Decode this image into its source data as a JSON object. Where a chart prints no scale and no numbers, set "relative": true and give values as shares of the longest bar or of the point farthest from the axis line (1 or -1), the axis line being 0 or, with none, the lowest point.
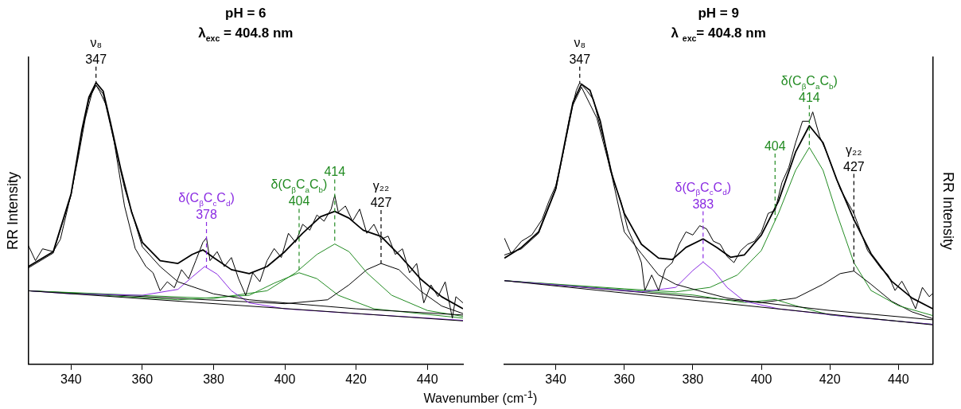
{
  "chart_data": [
    {
      "type": "line",
      "title": "pH = 6",
      "subtitle": "λ$_{exc}$ = 404.8 nm",
      "xlabel": "Wavenumber (cm$^{-1}$)",
      "ylabel": "RR Intensity",
      "relative": true,
      "xlim": [
        328,
        450
      ],
      "xticks": [
        340,
        360,
        380,
        400,
        420,
        440
      ],
      "legend": false,
      "marker": "none",
      "line_style": "solid",
      "series": [
        {
          "color": "#000000",
          "x": [
            328,
            330,
            332,
            335,
            337,
            340,
            342,
            344,
            346,
            347,
            348,
            350,
            352,
            355,
            358,
            361,
            363,
            365,
            367,
            369,
            371,
            373,
            375,
            377,
            378,
            379,
            381,
            383,
            385,
            387,
            389,
            391,
            393,
            395,
            397,
            399,
            401,
            403,
            405,
            407,
            409,
            411,
            413,
            414,
            415,
            417,
            419,
            421,
            423,
            425,
            427,
            429,
            431,
            433,
            435,
            437,
            439,
            441,
            443,
            445,
            447,
            448,
            450
          ],
          "values": [
            0.422,
            0.368,
            0.41,
            0.4,
            0.444,
            0.605,
            0.734,
            0.873,
            0.97,
            0.991,
            0.97,
            0.916,
            0.798,
            0.562,
            0.411,
            0.347,
            0.325,
            0.261,
            0.293,
            0.272,
            0.336,
            0.304,
            0.368,
            0.433,
            0.449,
            0.368,
            0.4,
            0.347,
            0.379,
            0.304,
            0.245,
            0.325,
            0.293,
            0.368,
            0.411,
            0.379,
            0.465,
            0.433,
            0.497,
            0.476,
            0.53,
            0.508,
            0.551,
            0.6,
            0.54,
            0.562,
            0.508,
            0.551,
            0.465,
            0.497,
            0.444,
            0.455,
            0.39,
            0.41,
            0.325,
            0.358,
            0.218,
            0.282,
            0.24,
            0.293,
            0.164,
            0.24,
            0.218
          ]
        },
        {
          "color": "#000000",
          "x": [
            328,
            335,
            340,
            343,
            345,
            347,
            349,
            351,
            354,
            357,
            360,
            365,
            370,
            374,
            377,
            380,
            385,
            390,
            395,
            400,
            405,
            410,
            414,
            418,
            422,
            427,
            432,
            438,
            444,
            450
          ],
          "values": [
            0.347,
            0.4,
            0.605,
            0.83,
            0.948,
            1.0,
            0.97,
            0.862,
            0.69,
            0.54,
            0.433,
            0.368,
            0.358,
            0.39,
            0.406,
            0.379,
            0.336,
            0.322,
            0.347,
            0.4,
            0.465,
            0.524,
            0.543,
            0.519,
            0.476,
            0.454,
            0.39,
            0.304,
            0.24,
            0.197
          ]
        },
        {
          "color": "#000000",
          "x": [
            328,
            450
          ],
          "values": [
            0.261,
            0.154
          ]
        },
        {
          "color": "#000000",
          "x": [
            328,
            335,
            340,
            343,
            345,
            347,
            349,
            351,
            355,
            360,
            365,
            370,
            380,
            390,
            400,
            420,
            450
          ],
          "values": [
            0.342,
            0.395,
            0.6,
            0.82,
            0.94,
            0.991,
            0.96,
            0.85,
            0.626,
            0.417,
            0.347,
            0.293,
            0.25,
            0.229,
            0.218,
            0.197,
            0.175
          ]
        },
        {
          "color": "#8a2be2",
          "x": [
            328,
            340,
            360,
            370,
            374,
            377.5,
            381,
            385,
            390,
            400,
            420,
            450
          ],
          "values": [
            0.261,
            0.25,
            0.245,
            0.266,
            0.31,
            0.347,
            0.32,
            0.261,
            0.218,
            0.197,
            0.18,
            0.156
          ]
        },
        {
          "color": "#228b22",
          "x": [
            328,
            370,
            390,
            397,
            404,
            409,
            415,
            425,
            450
          ],
          "values": [
            0.261,
            0.229,
            0.245,
            0.288,
            0.325,
            0.304,
            0.245,
            0.197,
            0.164
          ]
        },
        {
          "color": "#228b22",
          "x": [
            328,
            380,
            395,
            403,
            409,
            414,
            418,
            423,
            430,
            440,
            450
          ],
          "values": [
            0.261,
            0.234,
            0.261,
            0.325,
            0.39,
            0.427,
            0.4,
            0.325,
            0.245,
            0.191,
            0.17
          ]
        },
        {
          "color": "#000000",
          "x": [
            328,
            400,
            412,
            418,
            423,
            427,
            432,
            438,
            444,
            450
          ],
          "values": [
            0.261,
            0.215,
            0.229,
            0.282,
            0.336,
            0.358,
            0.336,
            0.261,
            0.207,
            0.18
          ]
        }
      ],
      "ref_lines": [
        {
          "axis": "x",
          "value": 347,
          "label": "ν₈\n347",
          "color": "#000000",
          "line_style": "dashed"
        },
        {
          "axis": "x",
          "value": 378,
          "label": "δ(C$_{β}$C$_{c}$C$_{d}$)\n378",
          "color": "#8a2be2",
          "line_style": "dashed"
        },
        {
          "axis": "x",
          "value": 404,
          "label": "δ(C$_{β}$C$_{a}$C$_{b}$)\n404",
          "color": "#228b22",
          "line_style": "dashed"
        },
        {
          "axis": "x",
          "value": 414,
          "label": "414",
          "color": "#228b22",
          "line_style": "dashed"
        },
        {
          "axis": "x",
          "value": 427,
          "label": "γ₂₂\n427",
          "color": "#000000",
          "line_style": "dashed"
        }
      ]
    },
    {
      "type": "line",
      "title": "pH = 9",
      "subtitle": "λ $_{exc}$= 404.8 nm",
      "y2label": "RR Intensity",
      "relative": true,
      "xlim": [
        325,
        450
      ],
      "xticks": [
        340,
        360,
        380,
        400,
        420,
        440
      ],
      "legend": false,
      "marker": "none",
      "line_style": "solid",
      "series": [
        {
          "color": "#000000",
          "axis": "y2",
          "x": [
            325,
            327,
            330,
            333,
            336,
            338,
            340,
            342,
            344,
            346,
            347,
            349,
            351,
            353,
            355,
            357,
            359,
            361,
            363,
            365,
            366,
            368,
            370,
            372,
            374,
            376,
            378,
            380,
            382,
            384,
            386,
            388,
            390,
            392,
            394,
            396,
            398,
            400,
            402,
            404,
            406,
            408,
            410,
            412,
            414,
            415,
            417,
            419,
            421,
            423,
            425,
            427,
            429,
            431,
            433,
            435,
            437,
            439,
            441,
            443,
            445,
            447,
            449,
            450
          ],
          "values": [
            0.448,
            0.393,
            0.437,
            0.459,
            0.514,
            0.579,
            0.634,
            0.743,
            0.874,
            0.973,
            1.0,
            0.973,
            0.94,
            0.842,
            0.754,
            0.645,
            0.579,
            0.481,
            0.426,
            0.361,
            0.262,
            0.317,
            0.262,
            0.339,
            0.361,
            0.426,
            0.47,
            0.459,
            0.492,
            0.481,
            0.437,
            0.426,
            0.383,
            0.361,
            0.404,
            0.426,
            0.437,
            0.47,
            0.536,
            0.546,
            0.645,
            0.699,
            0.787,
            0.863,
            0.863,
            0.896,
            0.809,
            0.754,
            0.689,
            0.623,
            0.579,
            0.536,
            0.47,
            0.404,
            0.372,
            0.339,
            0.317,
            0.262,
            0.295,
            0.251,
            0.197,
            0.273,
            0.24,
            0.251
          ]
        },
        {
          "color": "#000000",
          "axis": "y2",
          "x": [
            325,
            330,
            335,
            340,
            343,
            345,
            347.5,
            350,
            353,
            356,
            360,
            365,
            370,
            374,
            378,
            383,
            387,
            391,
            395,
            400,
            405,
            410,
            414,
            418,
            422,
            427,
            432,
            438,
            444,
            450
          ],
          "values": [
            0.377,
            0.415,
            0.47,
            0.623,
            0.809,
            0.929,
            0.995,
            0.973,
            0.863,
            0.689,
            0.536,
            0.426,
            0.377,
            0.372,
            0.415,
            0.445,
            0.415,
            0.38,
            0.388,
            0.459,
            0.579,
            0.754,
            0.847,
            0.787,
            0.656,
            0.514,
            0.393,
            0.295,
            0.235,
            0.197
          ]
        },
        {
          "color": "#000000",
          "axis": "y2",
          "x": [
            325,
            450
          ],
          "values": [
            0.297,
            0.14
          ]
        },
        {
          "color": "#000000",
          "axis": "y2",
          "x": [
            325,
            330,
            335,
            340,
            343,
            345,
            347.5,
            352,
            356,
            360,
            365,
            370,
            375,
            383,
            390,
            400,
            420,
            450
          ],
          "values": [
            0.388,
            0.41,
            0.465,
            0.62,
            0.8,
            0.92,
            0.984,
            0.874,
            0.689,
            0.47,
            0.393,
            0.317,
            0.284,
            0.257,
            0.235,
            0.219,
            0.191,
            0.158
          ]
        },
        {
          "color": "#8a2be2",
          "axis": "y2",
          "x": [
            325,
            365,
            375,
            380,
            383,
            386,
            390,
            395,
            405,
            425,
            450
          ],
          "values": [
            0.297,
            0.257,
            0.273,
            0.333,
            0.363,
            0.333,
            0.273,
            0.224,
            0.197,
            0.169,
            0.142
          ]
        },
        {
          "color": "#228b22",
          "axis": "y2",
          "x": [
            325,
            380,
            395,
            404,
            410,
            420,
            450
          ],
          "values": [
            0.297,
            0.246,
            0.219,
            0.23,
            0.208,
            0.175,
            0.142
          ]
        },
        {
          "color": "#228b22",
          "axis": "y2",
          "x": [
            325,
            360,
            375,
            385,
            393,
            400,
            405,
            410,
            414,
            418,
            422,
            427,
            432,
            440,
            450
          ],
          "values": [
            0.297,
            0.268,
            0.257,
            0.273,
            0.317,
            0.404,
            0.536,
            0.689,
            0.77,
            0.689,
            0.536,
            0.361,
            0.262,
            0.208,
            0.173
          ]
        },
        {
          "color": "#000000",
          "axis": "y2",
          "x": [
            325,
            400,
            410,
            418,
            423,
            427,
            432,
            438,
            444,
            450
          ],
          "values": [
            0.297,
            0.219,
            0.235,
            0.284,
            0.322,
            0.331,
            0.284,
            0.224,
            0.186,
            0.162
          ]
        }
      ],
      "ref_lines": [
        {
          "axis": "x",
          "value": 347,
          "label": "ν₈\n347",
          "color": "#000000",
          "line_style": "dashed"
        },
        {
          "axis": "x",
          "value": 383,
          "label": "δ(C$_{β}$C$_{c}$C$_{d}$)\n383",
          "color": "#8a2be2",
          "line_style": "dashed"
        },
        {
          "axis": "x",
          "value": 404,
          "label": "404",
          "color": "#228b22",
          "line_style": "dashed"
        },
        {
          "axis": "x",
          "value": 414,
          "label": "δ(C$_{β}$C$_{a}$C$_{b}$)\n414",
          "color": "#228b22",
          "line_style": "dashed"
        },
        {
          "axis": "x",
          "value": 427,
          "label": "γ₂₂\n427",
          "color": "#000000",
          "line_style": "dashed"
        }
      ]
    }
  ]
}
